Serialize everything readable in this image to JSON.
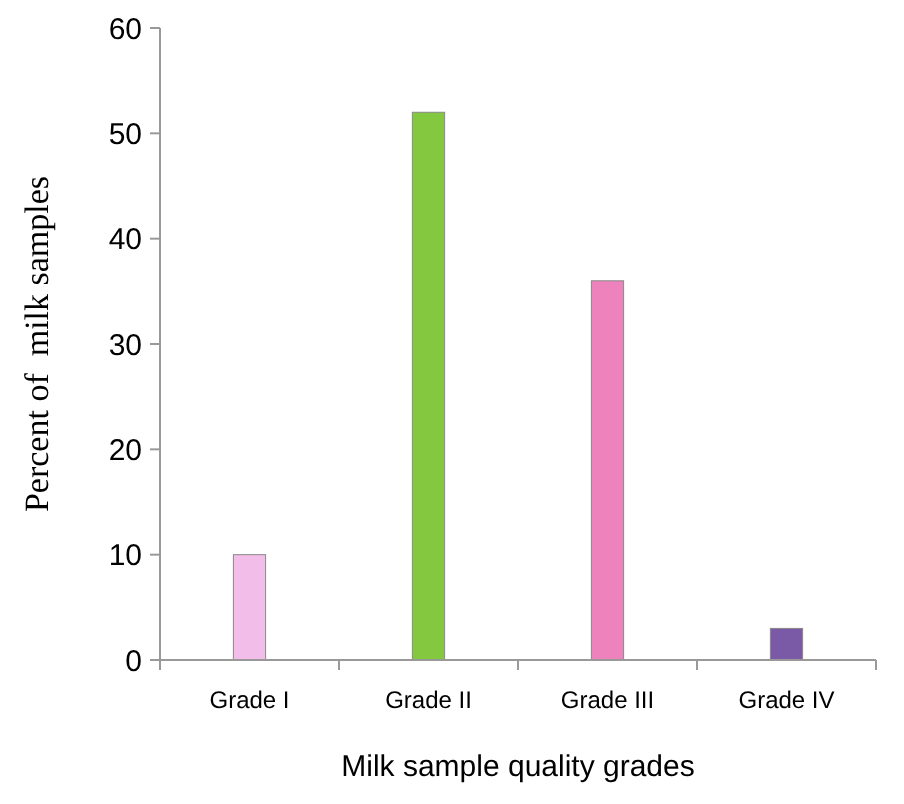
{
  "chart_data": {
    "type": "bar",
    "xlabel": "Milk sample quality grades",
    "ylabel": "Percent of  milk samples",
    "categories": [
      "Grade I",
      "Grade II",
      "Grade III",
      "Grade IV"
    ],
    "values": [
      10,
      52,
      36,
      3
    ],
    "colors": [
      "#f2bde8",
      "#84c840",
      "#ee82bd",
      "#7a5aa6"
    ],
    "ylim": [
      0,
      60
    ],
    "yticks": [
      0,
      10,
      20,
      30,
      40,
      50,
      60
    ],
    "grid": false
  }
}
